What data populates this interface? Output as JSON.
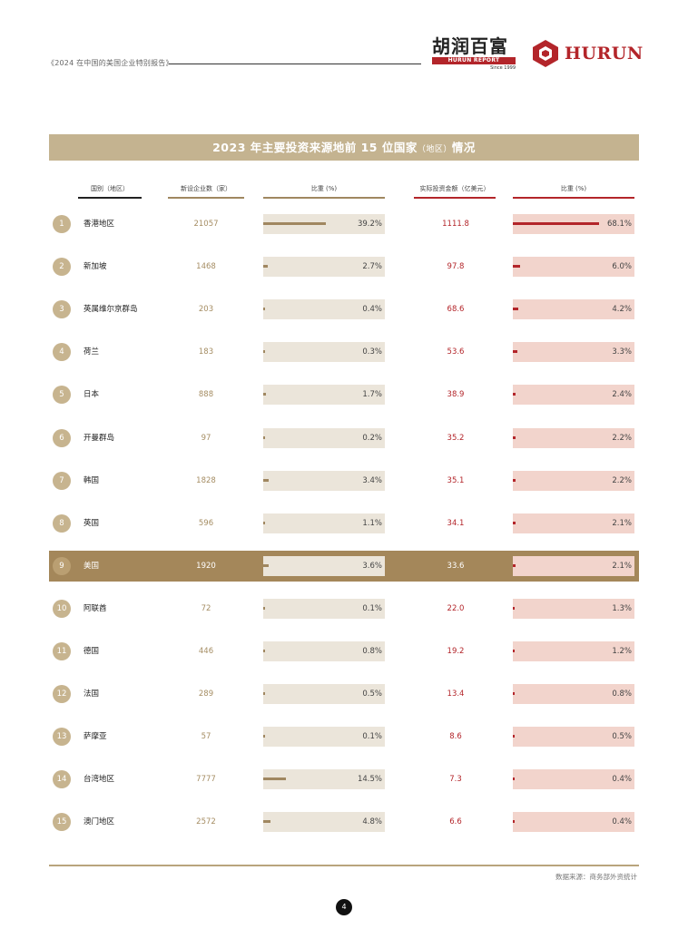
{
  "header": {
    "report_title": "《2024 在中国的美国企业特别报告》",
    "logo_cn": "胡润百富",
    "logo_cn_sub": "HURUN REPORT",
    "logo_since": "Since 1999",
    "logo_en": "HURUN"
  },
  "table": {
    "title_main": "2023 年主要投资来源地前 15 位国家",
    "title_small": "（地区）",
    "title_end": "情况",
    "columns": {
      "region": "国别（地区）",
      "count": "新设企业数（家）",
      "count_share": "比重 (%)",
      "amount": "实际投资金额（亿美元）",
      "amount_share": "比重 (%)"
    },
    "rows": [
      {
        "rank": "1",
        "name": "香港地区",
        "count": "21057",
        "share1": "39.2%",
        "v1": 39.2,
        "amount": "1111.8",
        "share2": "68.1%",
        "v2": 68.1
      },
      {
        "rank": "2",
        "name": "新加坡",
        "count": "1468",
        "share1": "2.7%",
        "v1": 2.7,
        "amount": "97.8",
        "share2": "6.0%",
        "v2": 6.0
      },
      {
        "rank": "3",
        "name": "英属维尔京群岛",
        "count": "203",
        "share1": "0.4%",
        "v1": 0.4,
        "amount": "68.6",
        "share2": "4.2%",
        "v2": 4.2
      },
      {
        "rank": "4",
        "name": "荷兰",
        "count": "183",
        "share1": "0.3%",
        "v1": 0.3,
        "amount": "53.6",
        "share2": "3.3%",
        "v2": 3.3
      },
      {
        "rank": "5",
        "name": "日本",
        "count": "888",
        "share1": "1.7%",
        "v1": 1.7,
        "amount": "38.9",
        "share2": "2.4%",
        "v2": 2.4
      },
      {
        "rank": "6",
        "name": "开曼群岛",
        "count": "97",
        "share1": "0.2%",
        "v1": 0.2,
        "amount": "35.2",
        "share2": "2.2%",
        "v2": 2.2
      },
      {
        "rank": "7",
        "name": "韩国",
        "count": "1828",
        "share1": "3.4%",
        "v1": 3.4,
        "amount": "35.1",
        "share2": "2.2%",
        "v2": 2.2
      },
      {
        "rank": "8",
        "name": "英国",
        "count": "596",
        "share1": "1.1%",
        "v1": 1.1,
        "amount": "34.1",
        "share2": "2.1%",
        "v2": 2.1
      },
      {
        "rank": "9",
        "name": "美国",
        "count": "1920",
        "share1": "3.6%",
        "v1": 3.6,
        "amount": "33.6",
        "share2": "2.1%",
        "v2": 2.1,
        "highlight": true
      },
      {
        "rank": "10",
        "name": "阿联酋",
        "count": "72",
        "share1": "0.1%",
        "v1": 0.1,
        "amount": "22.0",
        "share2": "1.3%",
        "v2": 1.3
      },
      {
        "rank": "11",
        "name": "德国",
        "count": "446",
        "share1": "0.8%",
        "v1": 0.8,
        "amount": "19.2",
        "share2": "1.2%",
        "v2": 1.2
      },
      {
        "rank": "12",
        "name": "法国",
        "count": "289",
        "share1": "0.5%",
        "v1": 0.5,
        "amount": "13.4",
        "share2": "0.8%",
        "v2": 0.8
      },
      {
        "rank": "13",
        "name": "萨摩亚",
        "count": "57",
        "share1": "0.1%",
        "v1": 0.1,
        "amount": "8.6",
        "share2": "0.5%",
        "v2": 0.5
      },
      {
        "rank": "14",
        "name": "台湾地区",
        "count": "7777",
        "share1": "14.5%",
        "v1": 14.5,
        "amount": "7.3",
        "share2": "0.4%",
        "v2": 0.4
      },
      {
        "rank": "15",
        "name": "澳门地区",
        "count": "2572",
        "share1": "4.8%",
        "v1": 4.8,
        "amount": "6.6",
        "share2": "0.4%",
        "v2": 0.4
      }
    ]
  },
  "footer": {
    "source": "数据来源：商务部外资统计",
    "page_number": "4"
  },
  "colors": {
    "gold": "#c4b390",
    "gold_dark": "#a08760",
    "highlight_row": "#a4875a",
    "red": "#b3252a",
    "pale_gold": "#ebe5da",
    "pale_red": "#f2d4cc"
  }
}
